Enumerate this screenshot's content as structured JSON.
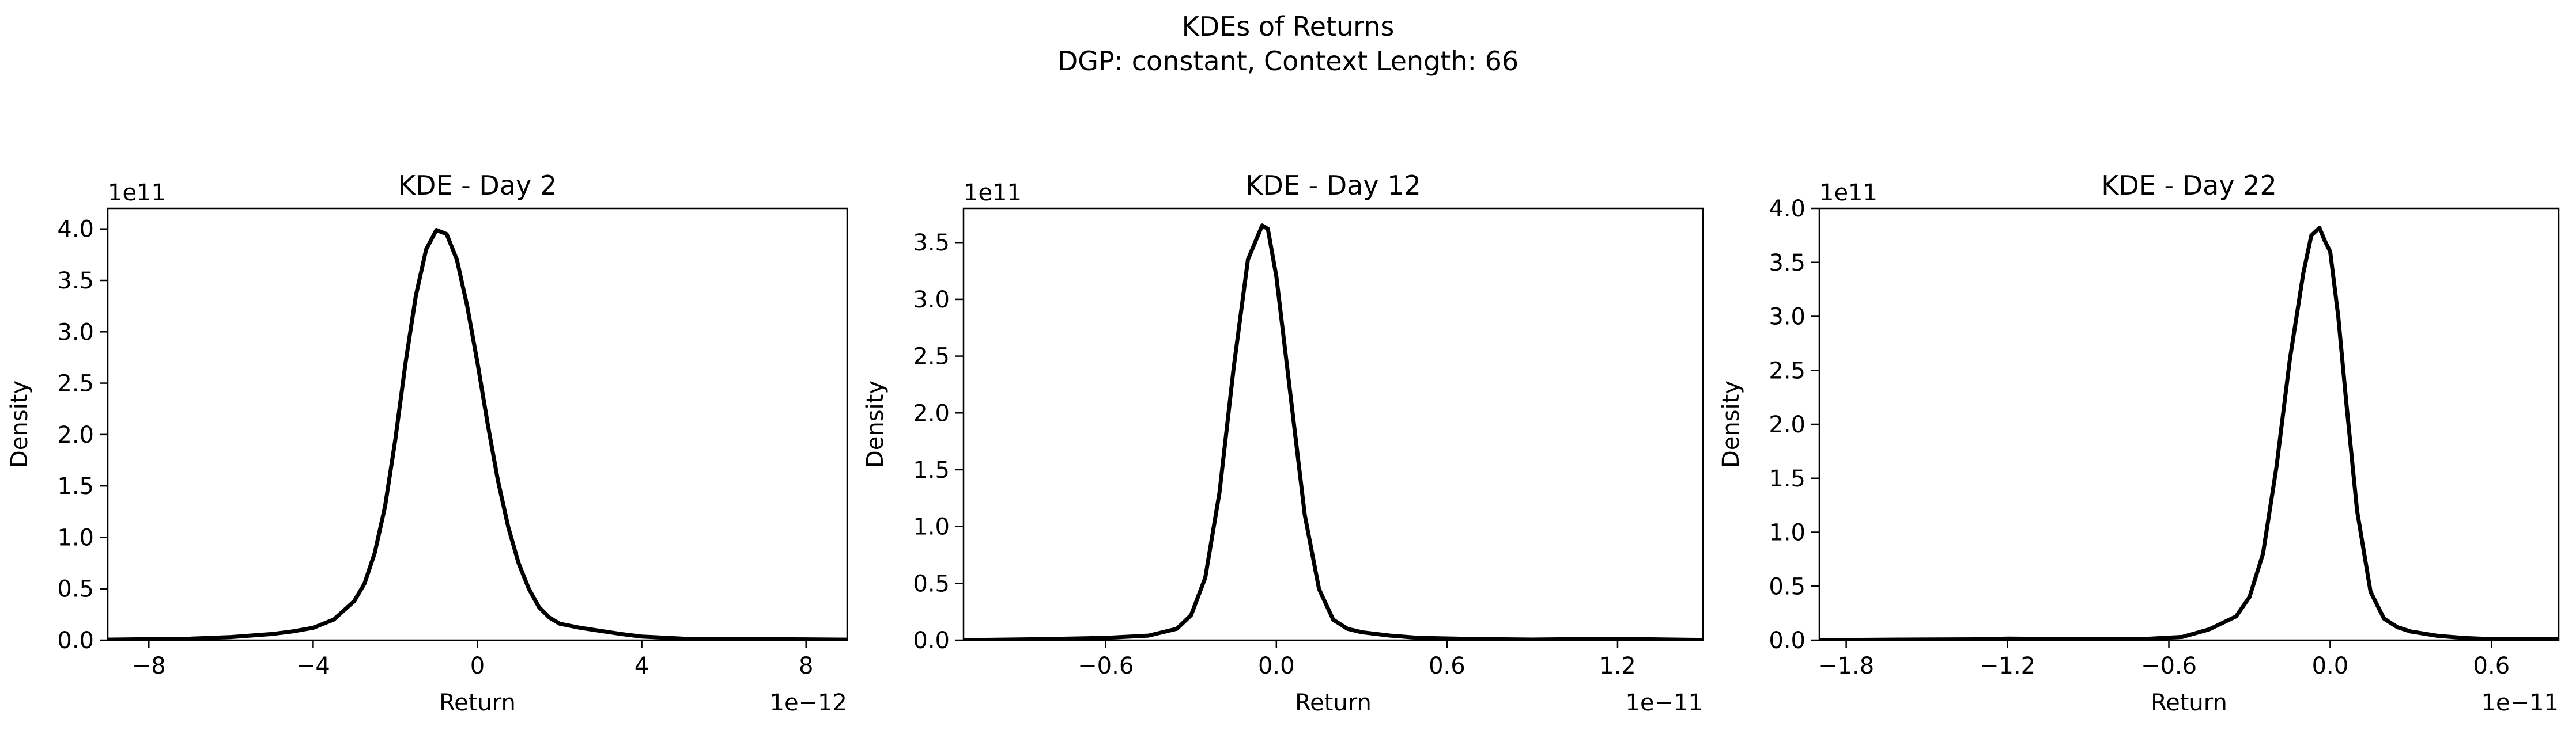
{
  "figure": {
    "suptitle_line1": "KDEs of Returns",
    "suptitle_line2": "DGP: constant, Context Length: 66"
  },
  "chart_data": [
    {
      "type": "line",
      "title": "KDE - Day 2",
      "xlabel": "Return",
      "ylabel": "Density",
      "x_scale_label": "1e−12",
      "y_scale_label": "1e11",
      "xlim": [
        -9.0,
        9.0
      ],
      "ylim": [
        0.0,
        4.2
      ],
      "xticks": [
        -8,
        -4,
        0,
        4,
        8
      ],
      "xtick_labels": [
        "−8",
        "−4",
        "0",
        "4",
        "8"
      ],
      "yticks": [
        0.0,
        0.5,
        1.0,
        1.5,
        2.0,
        2.5,
        3.0,
        3.5,
        4.0
      ],
      "ytick_labels": [
        "0.0",
        "0.5",
        "1.0",
        "1.5",
        "2.0",
        "2.5",
        "3.0",
        "3.5",
        "4.0"
      ],
      "grid": false,
      "color": "#000000",
      "series": [
        {
          "x": [
            -9.0,
            -8.0,
            -7.0,
            -6.0,
            -5.0,
            -4.5,
            -4.0,
            -3.5,
            -3.0,
            -2.75,
            -2.5,
            -2.25,
            -2.0,
            -1.75,
            -1.5,
            -1.25,
            -1.0,
            -0.75,
            -0.5,
            -0.25,
            0.0,
            0.25,
            0.5,
            0.75,
            1.0,
            1.25,
            1.5,
            1.75,
            2.0,
            2.5,
            3.0,
            3.5,
            4.0,
            5.0,
            6.0,
            7.0,
            8.0,
            9.0
          ],
          "y": [
            0.005,
            0.01,
            0.015,
            0.03,
            0.06,
            0.085,
            0.12,
            0.2,
            0.38,
            0.55,
            0.85,
            1.3,
            1.95,
            2.7,
            3.35,
            3.8,
            3.99,
            3.95,
            3.7,
            3.25,
            2.7,
            2.1,
            1.55,
            1.1,
            0.75,
            0.5,
            0.32,
            0.22,
            0.16,
            0.12,
            0.09,
            0.06,
            0.035,
            0.015,
            0.012,
            0.01,
            0.008,
            0.005
          ]
        }
      ]
    },
    {
      "type": "line",
      "title": "KDE - Day 12",
      "xlabel": "Return",
      "ylabel": "Density",
      "x_scale_label": "1e−11",
      "y_scale_label": "1e11",
      "xlim": [
        -1.1,
        1.5
      ],
      "ylim": [
        0.0,
        3.8
      ],
      "xticks": [
        -0.6,
        0.0,
        0.6,
        1.2
      ],
      "xtick_labels": [
        "−0.6",
        "0.0",
        "0.6",
        "1.2"
      ],
      "yticks": [
        0.0,
        0.5,
        1.0,
        1.5,
        2.0,
        2.5,
        3.0,
        3.5
      ],
      "ytick_labels": [
        "0.0",
        "0.5",
        "1.0",
        "1.5",
        "2.0",
        "2.5",
        "3.0",
        "3.5"
      ],
      "grid": false,
      "color": "#000000",
      "series": [
        {
          "x": [
            -1.1,
            -0.8,
            -0.6,
            -0.45,
            -0.35,
            -0.3,
            -0.25,
            -0.2,
            -0.15,
            -0.1,
            -0.05,
            -0.03,
            0.0,
            0.05,
            0.1,
            0.15,
            0.2,
            0.25,
            0.3,
            0.4,
            0.5,
            0.7,
            0.9,
            1.1,
            1.2,
            1.3,
            1.5
          ],
          "y": [
            0.0,
            0.01,
            0.02,
            0.04,
            0.1,
            0.22,
            0.55,
            1.3,
            2.4,
            3.35,
            3.65,
            3.62,
            3.2,
            2.15,
            1.1,
            0.45,
            0.18,
            0.1,
            0.07,
            0.04,
            0.02,
            0.01,
            0.005,
            0.01,
            0.012,
            0.008,
            0.002
          ]
        }
      ]
    },
    {
      "type": "line",
      "title": "KDE - Day 22",
      "xlabel": "Return",
      "ylabel": "Density",
      "x_scale_label": "1e−11",
      "y_scale_label": "1e11",
      "xlim": [
        -1.9,
        0.85
      ],
      "ylim": [
        0.0,
        4.0
      ],
      "xticks": [
        -1.8,
        -1.2,
        -0.6,
        0.0,
        0.6
      ],
      "xtick_labels": [
        "−1.8",
        "−1.2",
        "−0.6",
        "0.0",
        "0.6"
      ],
      "yticks": [
        0.0,
        0.5,
        1.0,
        1.5,
        2.0,
        2.5,
        3.0,
        3.5,
        4.0
      ],
      "ytick_labels": [
        "0.0",
        "0.5",
        "1.0",
        "1.5",
        "2.0",
        "2.5",
        "3.0",
        "3.5",
        "4.0"
      ],
      "grid": false,
      "color": "#000000",
      "series": [
        {
          "x": [
            -1.9,
            -1.6,
            -1.3,
            -1.2,
            -1.0,
            -0.7,
            -0.55,
            -0.45,
            -0.35,
            -0.3,
            -0.25,
            -0.2,
            -0.15,
            -0.1,
            -0.07,
            -0.04,
            -0.02,
            0.0,
            0.03,
            0.06,
            0.1,
            0.15,
            0.2,
            0.25,
            0.3,
            0.4,
            0.5,
            0.6,
            0.7,
            0.85
          ],
          "y": [
            0.0,
            0.005,
            0.008,
            0.015,
            0.01,
            0.01,
            0.03,
            0.1,
            0.22,
            0.4,
            0.8,
            1.6,
            2.6,
            3.4,
            3.75,
            3.82,
            3.7,
            3.6,
            3.0,
            2.2,
            1.2,
            0.45,
            0.2,
            0.12,
            0.08,
            0.04,
            0.02,
            0.01,
            0.01,
            0.008
          ]
        }
      ]
    }
  ]
}
